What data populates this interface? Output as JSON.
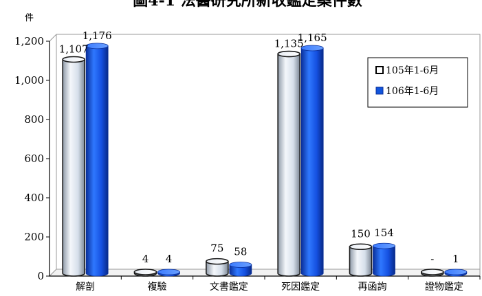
{
  "chart_data": {
    "type": "bar",
    "title": "圖4-1 法醫研究所新收鑑定案件數",
    "ylabel": "件",
    "xlabel": "",
    "ylim": [
      0,
      1200
    ],
    "yticks": [
      0,
      200,
      400,
      600,
      800,
      1000,
      1200
    ],
    "ytick_labels": [
      "0",
      "200",
      "400",
      "600",
      "800",
      "1,000",
      "1,200"
    ],
    "categories": [
      "解剖",
      "複驗",
      "文書鑑定",
      "死因鑑定",
      "再函詢",
      "證物鑑定"
    ],
    "series": [
      {
        "name": "105年1-6月",
        "values": [
          1107,
          4,
          75,
          1135,
          150,
          0
        ],
        "labels": [
          "1,107",
          "4",
          "75",
          "1,135",
          "150",
          "-"
        ],
        "color": "#dde6f0"
      },
      {
        "name": "106年1-6月",
        "values": [
          1176,
          4,
          58,
          1165,
          154,
          1
        ],
        "labels": [
          "1,176",
          "4",
          "58",
          "1,165",
          "154",
          "1"
        ],
        "color": "#1155dd"
      }
    ],
    "legend_position": "top-right",
    "grid": false,
    "style": "3d-cylinder"
  }
}
